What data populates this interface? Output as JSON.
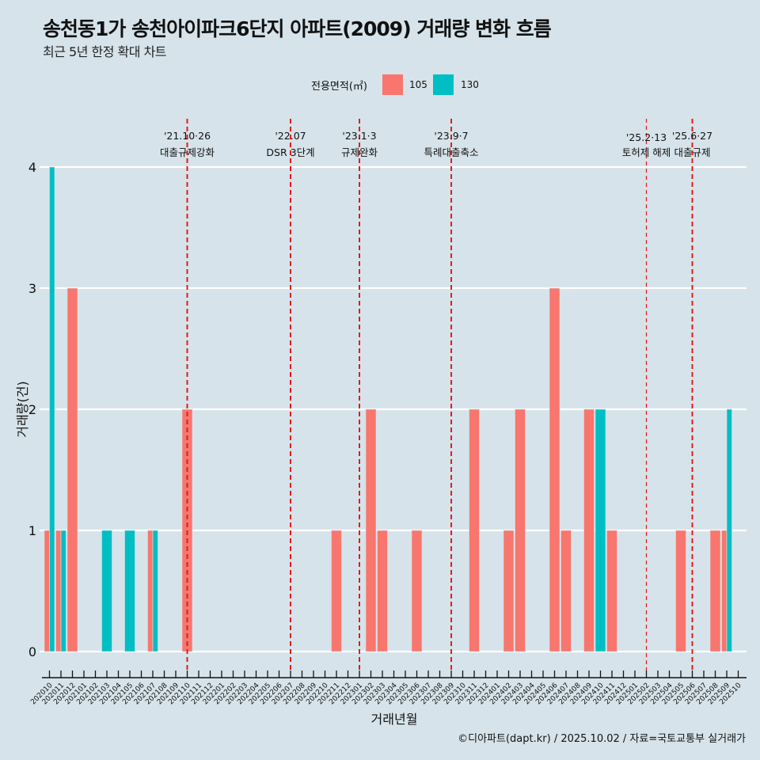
{
  "header": {
    "title": "송천동1가 송천아이파크6단지 아파트(2009) 거래량 변화 흐름",
    "subtitle": "최근 5년 한정 확대 차트"
  },
  "legend": {
    "title": "전용면적(㎡)",
    "items": [
      {
        "label": "105",
        "color": "#f8766d"
      },
      {
        "label": "130",
        "color": "#00bfc4"
      }
    ]
  },
  "caption": "©디아파트(dapt.kr) / 2025.10.02 / 자료=국토교통부 실거래가",
  "chart_data": {
    "type": "bar",
    "title": "송천동1가 송천아이파크6단지 아파트(2009) 거래량 변화 흐름",
    "subtitle": "최근 5년 한정 확대 차트",
    "xlabel": "거래년월",
    "ylabel": "거래량(건)",
    "ylim": [
      0,
      4
    ],
    "yticks": [
      0,
      1,
      2,
      3,
      4
    ],
    "grid": true,
    "legend_position": "top",
    "categories": [
      "202010",
      "202011",
      "202012",
      "202101",
      "202102",
      "202103",
      "202104",
      "202105",
      "202106",
      "202107",
      "202108",
      "202109",
      "202110",
      "202111",
      "202112",
      "202201",
      "202202",
      "202203",
      "202204",
      "202205",
      "202206",
      "202207",
      "202208",
      "202209",
      "202210",
      "202211",
      "202212",
      "202301",
      "202302",
      "202303",
      "202304",
      "202305",
      "202306",
      "202307",
      "202308",
      "202309",
      "202310",
      "202311",
      "202312",
      "202401",
      "202402",
      "202403",
      "202404",
      "202405",
      "202406",
      "202407",
      "202408",
      "202409",
      "202410",
      "202411",
      "202412",
      "202501",
      "202502",
      "202503",
      "202504",
      "202505",
      "202506",
      "202507",
      "202508",
      "202509",
      "202510"
    ],
    "series": [
      {
        "name": "105",
        "color": "#f8766d",
        "points": [
          {
            "x": "202010",
            "y": 1
          },
          {
            "x": "202011",
            "y": 1
          },
          {
            "x": "202012",
            "y": 3
          },
          {
            "x": "202107",
            "y": 1
          },
          {
            "x": "202110",
            "y": 2
          },
          {
            "x": "202211",
            "y": 1
          },
          {
            "x": "202302",
            "y": 2
          },
          {
            "x": "202303",
            "y": 1
          },
          {
            "x": "202306",
            "y": 1
          },
          {
            "x": "202311",
            "y": 2
          },
          {
            "x": "202402",
            "y": 1
          },
          {
            "x": "202403",
            "y": 2
          },
          {
            "x": "202406",
            "y": 3
          },
          {
            "x": "202407",
            "y": 1
          },
          {
            "x": "202409",
            "y": 2
          },
          {
            "x": "202411",
            "y": 1
          },
          {
            "x": "202505",
            "y": 1
          },
          {
            "x": "202508",
            "y": 1
          },
          {
            "x": "202509",
            "y": 1
          }
        ]
      },
      {
        "name": "130",
        "color": "#00bfc4",
        "points": [
          {
            "x": "202010",
            "y": 4
          },
          {
            "x": "202011",
            "y": 1
          },
          {
            "x": "202103",
            "y": 1
          },
          {
            "x": "202105",
            "y": 1
          },
          {
            "x": "202107",
            "y": 1
          },
          {
            "x": "202410",
            "y": 2
          },
          {
            "x": "202509",
            "y": 2
          }
        ]
      }
    ],
    "events": [
      {
        "x": "202110",
        "date": "'21.10·26",
        "label": "대출규제강화",
        "style": "thick"
      },
      {
        "x": "202207",
        "date": "'22.07",
        "label": "DSR 3단계",
        "style": "thick"
      },
      {
        "x": "202301",
        "date": "'23.1·3",
        "label": "규제완화",
        "style": "thick"
      },
      {
        "x": "202309",
        "date": "'23.9·7",
        "label": "특례대출축소",
        "style": "thick"
      },
      {
        "x": "202502",
        "date": "'25.2·13",
        "label": "토허제 해제",
        "style": "thin"
      },
      {
        "x": "202506",
        "date": "'25.6·27",
        "label": "대출규제",
        "style": "thick"
      }
    ],
    "event_color": "#e41a1c"
  }
}
